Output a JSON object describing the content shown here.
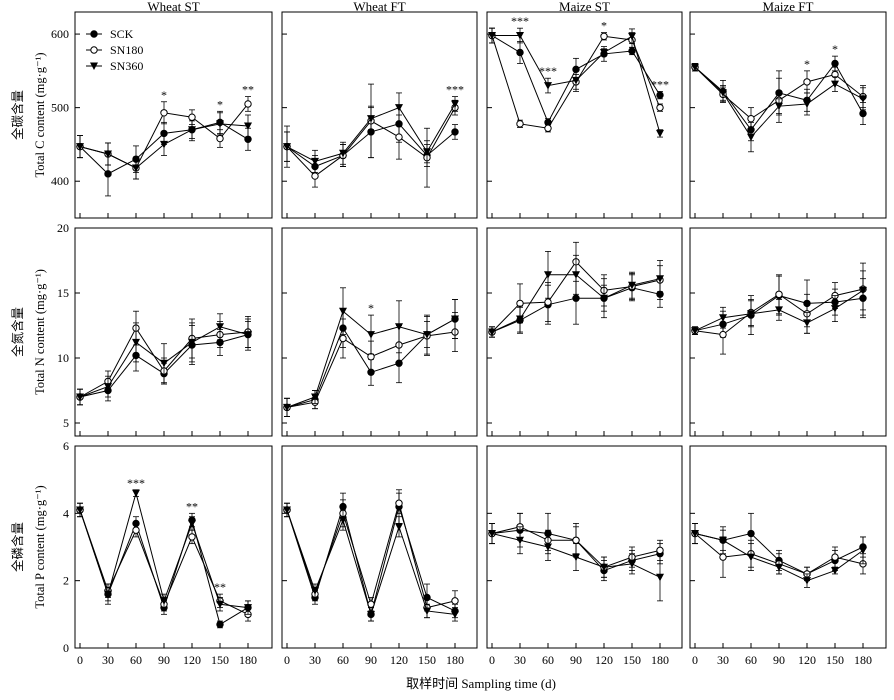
{
  "figure": {
    "x_label": "取样时间 Sampling time (d)",
    "x_ticks": [
      "0",
      "30",
      "60",
      "90",
      "120",
      "150",
      "180"
    ],
    "column_titles": [
      "Wheat ST",
      "Wheat FT",
      "Maize ST",
      "Maize FT"
    ],
    "row_labels": [
      {
        "cn": "全碳含量",
        "en": "Total C content (mg·g⁻¹)"
      },
      {
        "cn": "全氮含量",
        "en": "Total N content (mg·g⁻¹)"
      },
      {
        "cn": "全磷含量",
        "en": "Total P content (mg·g⁻¹)"
      }
    ],
    "legend": [
      "SCK",
      "SN180",
      "SN360"
    ]
  },
  "chart_data": {
    "type": "line",
    "x": [
      0,
      30,
      60,
      90,
      120,
      150,
      180
    ],
    "series_names": [
      "SCK",
      "SN180",
      "SN360"
    ],
    "series_markers": [
      "filled-circle",
      "open-circle",
      "filled-down-triangle"
    ],
    "rows": [
      {
        "variable": "Total C content",
        "ylim": [
          350,
          630
        ],
        "yticks": [
          400,
          500,
          600
        ],
        "panels": [
          {
            "title": "Wheat ST",
            "values": {
              "SCK": [
                447,
                410,
                430,
                465,
                470,
                480,
                457
              ],
              "SN180": [
                447,
                437,
                418,
                493,
                487,
                458,
                505
              ],
              "SN360": [
                447,
                437,
                418,
                450,
                470,
                478,
                475
              ]
            },
            "error": {
              "SCK": [
                15,
                30,
                18,
                15,
                15,
                15,
                15
              ],
              "SN180": [
                15,
                15,
                15,
                15,
                10,
                12,
                10
              ],
              "SN360": [
                15,
                15,
                15,
                15,
                12,
                15,
                15
              ]
            },
            "significance": [
              {
                "x": 90,
                "label": "*"
              },
              {
                "x": 150,
                "label": "*"
              },
              {
                "x": 180,
                "label": "**"
              }
            ]
          },
          {
            "title": "Wheat FT",
            "values": {
              "SCK": [
                447,
                420,
                435,
                467,
                478,
                435,
                467
              ],
              "SN180": [
                447,
                407,
                435,
                482,
                460,
                432,
                500
              ],
              "SN360": [
                447,
                427,
                438,
                485,
                500,
                440,
                505
              ]
            },
            "error": {
              "SCK": [
                28,
                15,
                15,
                35,
                25,
                15,
                10
              ],
              "SN180": [
                20,
                15,
                15,
                50,
                30,
                40,
                10
              ],
              "SN360": [
                20,
                15,
                15,
                15,
                20,
                15,
                10
              ]
            },
            "significance": [
              {
                "x": 180,
                "label": "***"
              }
            ]
          },
          {
            "title": "Maize ST",
            "values": {
              "SCK": [
                598,
                575,
                480,
                552,
                573,
                577,
                517
              ],
              "SN180": [
                598,
                478,
                472,
                535,
                597,
                592,
                500
              ],
              "SN360": [
                598,
                598,
                530,
                537,
                575,
                597,
                465
              ]
            },
            "error": {
              "SCK": [
                10,
                15,
                5,
                15,
                10,
                5,
                5
              ],
              "SN180": [
                10,
                5,
                5,
                10,
                5,
                10,
                5
              ],
              "SN360": [
                10,
                10,
                10,
                15,
                5,
                10,
                5
              ]
            },
            "significance": [
              {
                "x": 30,
                "label": "***"
              },
              {
                "x": 60,
                "label": "***"
              },
              {
                "x": 120,
                "label": "*"
              },
              {
                "x": 180,
                "label": "***"
              }
            ]
          },
          {
            "title": "Maize FT",
            "values": {
              "SCK": [
                555,
                522,
                470,
                520,
                510,
                560,
                492
              ],
              "SN180": [
                555,
                518,
                485,
                510,
                535,
                545,
                515
              ],
              "SN360": [
                555,
                520,
                460,
                502,
                505,
                532,
                512
              ]
            },
            "error": {
              "SCK": [
                5,
                15,
                15,
                30,
                15,
                10,
                15
              ],
              "SN180": [
                5,
                10,
                15,
                30,
                15,
                10,
                15
              ],
              "SN360": [
                5,
                10,
                20,
                10,
                15,
                10,
                15
              ]
            },
            "significance": [
              {
                "x": 120,
                "label": "*"
              },
              {
                "x": 150,
                "label": "*"
              }
            ]
          }
        ]
      },
      {
        "variable": "Total N content",
        "ylim": [
          4,
          20
        ],
        "yticks": [
          5,
          10,
          15,
          20
        ],
        "panels": [
          {
            "title": "Wheat ST",
            "values": {
              "SCK": [
                7.0,
                7.5,
                10.2,
                8.8,
                11.0,
                11.2,
                11.8
              ],
              "SN180": [
                7.0,
                8.2,
                12.3,
                9.0,
                11.5,
                11.8,
                12.0
              ],
              "SN360": [
                7.0,
                7.8,
                11.2,
                9.6,
                11.2,
                12.4,
                11.8
              ]
            },
            "error": {
              "SCK": [
                0.6,
                0.8,
                1.2,
                0.8,
                1.5,
                1.0,
                1.0
              ],
              "SN180": [
                0.6,
                0.8,
                1.3,
                1.0,
                1.5,
                1.0,
                1.2
              ],
              "SN360": [
                0.6,
                0.8,
                1.5,
                1.5,
                1.5,
                1.0,
                1.2
              ]
            },
            "significance": []
          },
          {
            "title": "Wheat FT",
            "values": {
              "SCK": [
                6.2,
                6.8,
                12.3,
                8.9,
                9.6,
                11.8,
                13.0
              ],
              "SN180": [
                6.2,
                6.6,
                11.5,
                10.1,
                11.0,
                11.7,
                12.0
              ],
              "SN360": [
                6.2,
                7.0,
                13.6,
                11.8,
                12.4,
                11.8,
                13.0
              ]
            },
            "error": {
              "SCK": [
                0.7,
                0.7,
                1.5,
                1.0,
                1.5,
                1.0,
                1.5
              ],
              "SN180": [
                0.7,
                0.5,
                1.5,
                1.2,
                1.5,
                1.5,
                1.5
              ],
              "SN360": [
                0.7,
                0.5,
                1.8,
                1.5,
                2.0,
                1.5,
                1.5
              ]
            },
            "significance": [
              {
                "x": 90,
                "label": "*"
              }
            ]
          },
          {
            "title": "Maize ST",
            "values": {
              "SCK": [
                12.0,
                12.9,
                14.1,
                14.6,
                14.6,
                15.4,
                14.9
              ],
              "SN180": [
                12.0,
                14.2,
                14.3,
                17.4,
                15.2,
                15.5,
                16.0
              ],
              "SN360": [
                12.0,
                13.0,
                16.4,
                16.4,
                14.6,
                15.6,
                16.1
              ]
            },
            "error": {
              "SCK": [
                0.4,
                1.0,
                1.5,
                2.0,
                1.5,
                1.0,
                1.0
              ],
              "SN180": [
                0.4,
                1.5,
                1.5,
                1.5,
                1.2,
                1.0,
                1.5
              ],
              "SN360": [
                0.4,
                1.0,
                1.8,
                1.5,
                1.0,
                1.0,
                1.0
              ]
            },
            "significance": []
          },
          {
            "title": "Maize FT",
            "values": {
              "SCK": [
                12.1,
                12.6,
                13.3,
                14.8,
                14.2,
                14.3,
                14.6
              ],
              "SN180": [
                12.1,
                11.8,
                13.5,
                14.9,
                13.4,
                14.8,
                15.3
              ],
              "SN360": [
                12.1,
                13.1,
                13.4,
                13.7,
                12.7,
                13.8,
                15.2
              ]
            },
            "error": {
              "SCK": [
                0.3,
                1.0,
                1.5,
                1.5,
                1.8,
                1.0,
                1.5
              ],
              "SN180": [
                0.3,
                1.5,
                1.0,
                1.5,
                1.5,
                1.0,
                2.0
              ],
              "SN360": [
                0.3,
                0.8,
                1.0,
                0.8,
                0.8,
                1.0,
                1.5
              ]
            },
            "significance": []
          }
        ]
      },
      {
        "variable": "Total P content",
        "ylim": [
          0,
          6
        ],
        "yticks": [
          0,
          2,
          4,
          6
        ],
        "panels": [
          {
            "title": "Wheat ST",
            "values": {
              "SCK": [
                4.1,
                1.6,
                3.7,
                1.2,
                3.8,
                0.7,
                1.2
              ],
              "SN180": [
                4.1,
                1.7,
                3.5,
                1.3,
                3.3,
                1.4,
                1.0
              ],
              "SN360": [
                4.1,
                1.6,
                4.6,
                1.4,
                3.7,
                1.3,
                1.2
              ]
            },
            "error": {
              "SCK": [
                0.2,
                0.3,
                0.2,
                0.2,
                0.2,
                0.1,
                0.2
              ],
              "SN180": [
                0.2,
                0.2,
                0.2,
                0.2,
                0.2,
                0.2,
                0.2
              ],
              "SN360": [
                0.2,
                0.2,
                0.1,
                0.2,
                0.2,
                0.2,
                0.2
              ]
            },
            "significance": [
              {
                "x": 60,
                "label": "***"
              },
              {
                "x": 120,
                "label": "**"
              },
              {
                "x": 150,
                "label": "**"
              }
            ]
          },
          {
            "title": "Wheat FT",
            "values": {
              "SCK": [
                4.1,
                1.5,
                4.2,
                1.0,
                4.2,
                1.5,
                1.1
              ],
              "SN180": [
                4.1,
                1.6,
                4.0,
                1.3,
                4.3,
                1.2,
                1.4
              ],
              "SN360": [
                4.1,
                1.7,
                3.8,
                1.0,
                3.6,
                1.1,
                1.0
              ]
            },
            "error": {
              "SCK": [
                0.2,
                0.2,
                0.4,
                0.2,
                0.5,
                0.4,
                0.2
              ],
              "SN180": [
                0.2,
                0.2,
                0.4,
                0.2,
                0.3,
                0.3,
                0.3
              ],
              "SN360": [
                0.2,
                0.2,
                0.3,
                0.2,
                0.3,
                0.2,
                0.2
              ]
            },
            "significance": []
          },
          {
            "title": "Maize ST",
            "values": {
              "SCK": [
                3.4,
                3.5,
                3.4,
                3.2,
                2.3,
                2.6,
                2.8
              ],
              "SN180": [
                3.4,
                3.6,
                3.2,
                3.2,
                2.4,
                2.7,
                2.9
              ],
              "SN360": [
                3.4,
                3.2,
                3.0,
                2.7,
                2.4,
                2.5,
                2.1
              ]
            },
            "error": {
              "SCK": [
                0.3,
                0.5,
                0.6,
                0.5,
                0.3,
                0.3,
                0.3
              ],
              "SN180": [
                0.3,
                0.4,
                0.3,
                0.4,
                0.3,
                0.3,
                0.3
              ],
              "SN360": [
                0.3,
                0.4,
                0.4,
                0.4,
                0.3,
                0.3,
                0.7
              ]
            },
            "significance": []
          },
          {
            "title": "Maize FT",
            "values": {
              "SCK": [
                3.4,
                3.2,
                3.4,
                2.6,
                2.2,
                2.6,
                3.0
              ],
              "SN180": [
                3.4,
                2.7,
                2.8,
                2.5,
                2.2,
                2.7,
                2.5
              ],
              "SN360": [
                3.4,
                3.2,
                2.7,
                2.4,
                2.0,
                2.3,
                2.9
              ]
            },
            "error": {
              "SCK": [
                0.3,
                0.4,
                0.6,
                0.3,
                0.2,
                0.3,
                0.3
              ],
              "SN180": [
                0.3,
                0.6,
                0.4,
                0.3,
                0.2,
                0.3,
                0.3
              ],
              "SN360": [
                0.3,
                0.3,
                0.4,
                0.2,
                0.2,
                0.1,
                0.4
              ]
            },
            "significance": []
          }
        ]
      }
    ]
  }
}
